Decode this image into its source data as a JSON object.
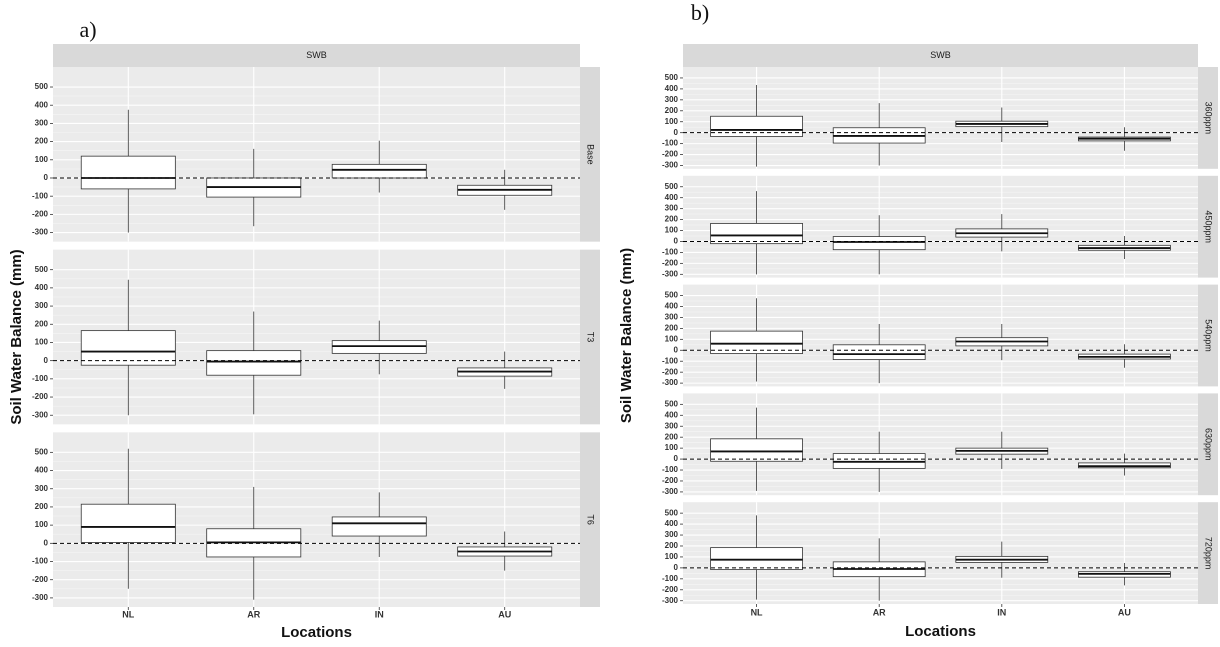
{
  "chart_data": [
    {
      "type": "box",
      "panel_label": "a)",
      "strip_title": "SWB",
      "y_label": "Soil Water Balance (mm)",
      "x_label": "Locations",
      "categories": [
        "NL",
        "AR",
        "IN",
        "AU"
      ],
      "ylim": [
        -350,
        610
      ],
      "yticks": [
        -300,
        -200,
        -100,
        0,
        100,
        200,
        300,
        400,
        500
      ],
      "hline": 0,
      "grid": true,
      "facets": [
        {
          "name": "Base",
          "boxes": [
            {
              "min": -300,
              "q1": -60,
              "median": 0,
              "q3": 120,
              "max": 375
            },
            {
              "min": -265,
              "q1": -105,
              "median": -50,
              "q3": 0,
              "max": 160
            },
            {
              "min": -80,
              "q1": 0,
              "median": 45,
              "q3": 75,
              "max": 205
            },
            {
              "min": -175,
              "q1": -95,
              "median": -65,
              "q3": -40,
              "max": 45
            }
          ]
        },
        {
          "name": "T3",
          "boxes": [
            {
              "min": -300,
              "q1": -25,
              "median": 50,
              "q3": 165,
              "max": 445
            },
            {
              "min": -295,
              "q1": -80,
              "median": -5,
              "q3": 55,
              "max": 270
            },
            {
              "min": -75,
              "q1": 40,
              "median": 80,
              "q3": 110,
              "max": 220
            },
            {
              "min": -155,
              "q1": -85,
              "median": -60,
              "q3": -40,
              "max": 50
            }
          ]
        },
        {
          "name": "T6",
          "boxes": [
            {
              "min": -250,
              "q1": 5,
              "median": 90,
              "q3": 215,
              "max": 520
            },
            {
              "min": -310,
              "q1": -75,
              "median": 5,
              "q3": 80,
              "max": 310
            },
            {
              "min": -75,
              "q1": 40,
              "median": 110,
              "q3": 145,
              "max": 280
            },
            {
              "min": -150,
              "q1": -70,
              "median": -45,
              "q3": -20,
              "max": 65
            }
          ]
        }
      ]
    },
    {
      "type": "box",
      "panel_label": "b)",
      "strip_title": "SWB",
      "y_label": "Soil Water Balance (mm)",
      "x_label": "Locations",
      "categories": [
        "NL",
        "AR",
        "IN",
        "AU"
      ],
      "ylim": [
        -330,
        600
      ],
      "yticks": [
        -300,
        -200,
        -100,
        0,
        100,
        200,
        300,
        400,
        500
      ],
      "hline": 0,
      "grid": true,
      "facets": [
        {
          "name": "360ppm",
          "boxes": [
            {
              "min": -310,
              "q1": -35,
              "median": 25,
              "q3": 150,
              "max": 435
            },
            {
              "min": -300,
              "q1": -95,
              "median": -30,
              "q3": 45,
              "max": 270
            },
            {
              "min": -85,
              "q1": 55,
              "median": 80,
              "q3": 105,
              "max": 230
            },
            {
              "min": -165,
              "q1": -75,
              "median": -55,
              "q3": -40,
              "max": 50
            }
          ]
        },
        {
          "name": "450ppm",
          "boxes": [
            {
              "min": -300,
              "q1": -20,
              "median": 55,
              "q3": 165,
              "max": 460
            },
            {
              "min": -300,
              "q1": -75,
              "median": -5,
              "q3": 45,
              "max": 240
            },
            {
              "min": -90,
              "q1": 40,
              "median": 75,
              "q3": 115,
              "max": 250
            },
            {
              "min": -160,
              "q1": -80,
              "median": -60,
              "q3": -35,
              "max": 50
            }
          ]
        },
        {
          "name": "540ppm",
          "boxes": [
            {
              "min": -285,
              "q1": -30,
              "median": 60,
              "q3": 175,
              "max": 475
            },
            {
              "min": -300,
              "q1": -85,
              "median": -35,
              "q3": 50,
              "max": 240
            },
            {
              "min": -90,
              "q1": 40,
              "median": 80,
              "q3": 115,
              "max": 240
            },
            {
              "min": -160,
              "q1": -80,
              "median": -60,
              "q3": -35,
              "max": 55
            }
          ]
        },
        {
          "name": "630ppm",
          "boxes": [
            {
              "min": -290,
              "q1": -20,
              "median": 70,
              "q3": 185,
              "max": 470
            },
            {
              "min": -300,
              "q1": -85,
              "median": -25,
              "q3": 50,
              "max": 250
            },
            {
              "min": -90,
              "q1": 45,
              "median": 75,
              "q3": 100,
              "max": 250
            },
            {
              "min": -150,
              "q1": -80,
              "median": -65,
              "q3": -35,
              "max": 50
            }
          ]
        },
        {
          "name": "720ppm",
          "boxes": [
            {
              "min": -290,
              "q1": -15,
              "median": 75,
              "q3": 185,
              "max": 480
            },
            {
              "min": -300,
              "q1": -80,
              "median": -10,
              "q3": 55,
              "max": 270
            },
            {
              "min": -90,
              "q1": 50,
              "median": 75,
              "q3": 105,
              "max": 240
            },
            {
              "min": -160,
              "q1": -85,
              "median": -55,
              "q3": -35,
              "max": 45
            }
          ]
        }
      ]
    }
  ]
}
